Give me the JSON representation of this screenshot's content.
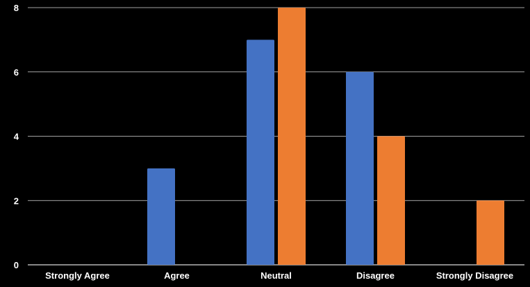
{
  "chart_data": {
    "type": "bar",
    "categories": [
      "Strongly Agree",
      "Agree",
      "Neutral",
      "Disagree",
      "Strongly Disagree"
    ],
    "series": [
      {
        "values": [
          0,
          3,
          7,
          6,
          0
        ],
        "color": "#4472C4"
      },
      {
        "values": [
          0,
          0,
          8,
          4,
          2
        ],
        "color": "#ED7D31"
      }
    ],
    "ylim": [
      0,
      8
    ],
    "yticks": [
      0,
      2,
      4,
      6,
      8
    ],
    "grid": true,
    "legend": "none",
    "background": "#000000",
    "gridline_color": "#d9d9d9",
    "text_color": "#ffffff"
  }
}
